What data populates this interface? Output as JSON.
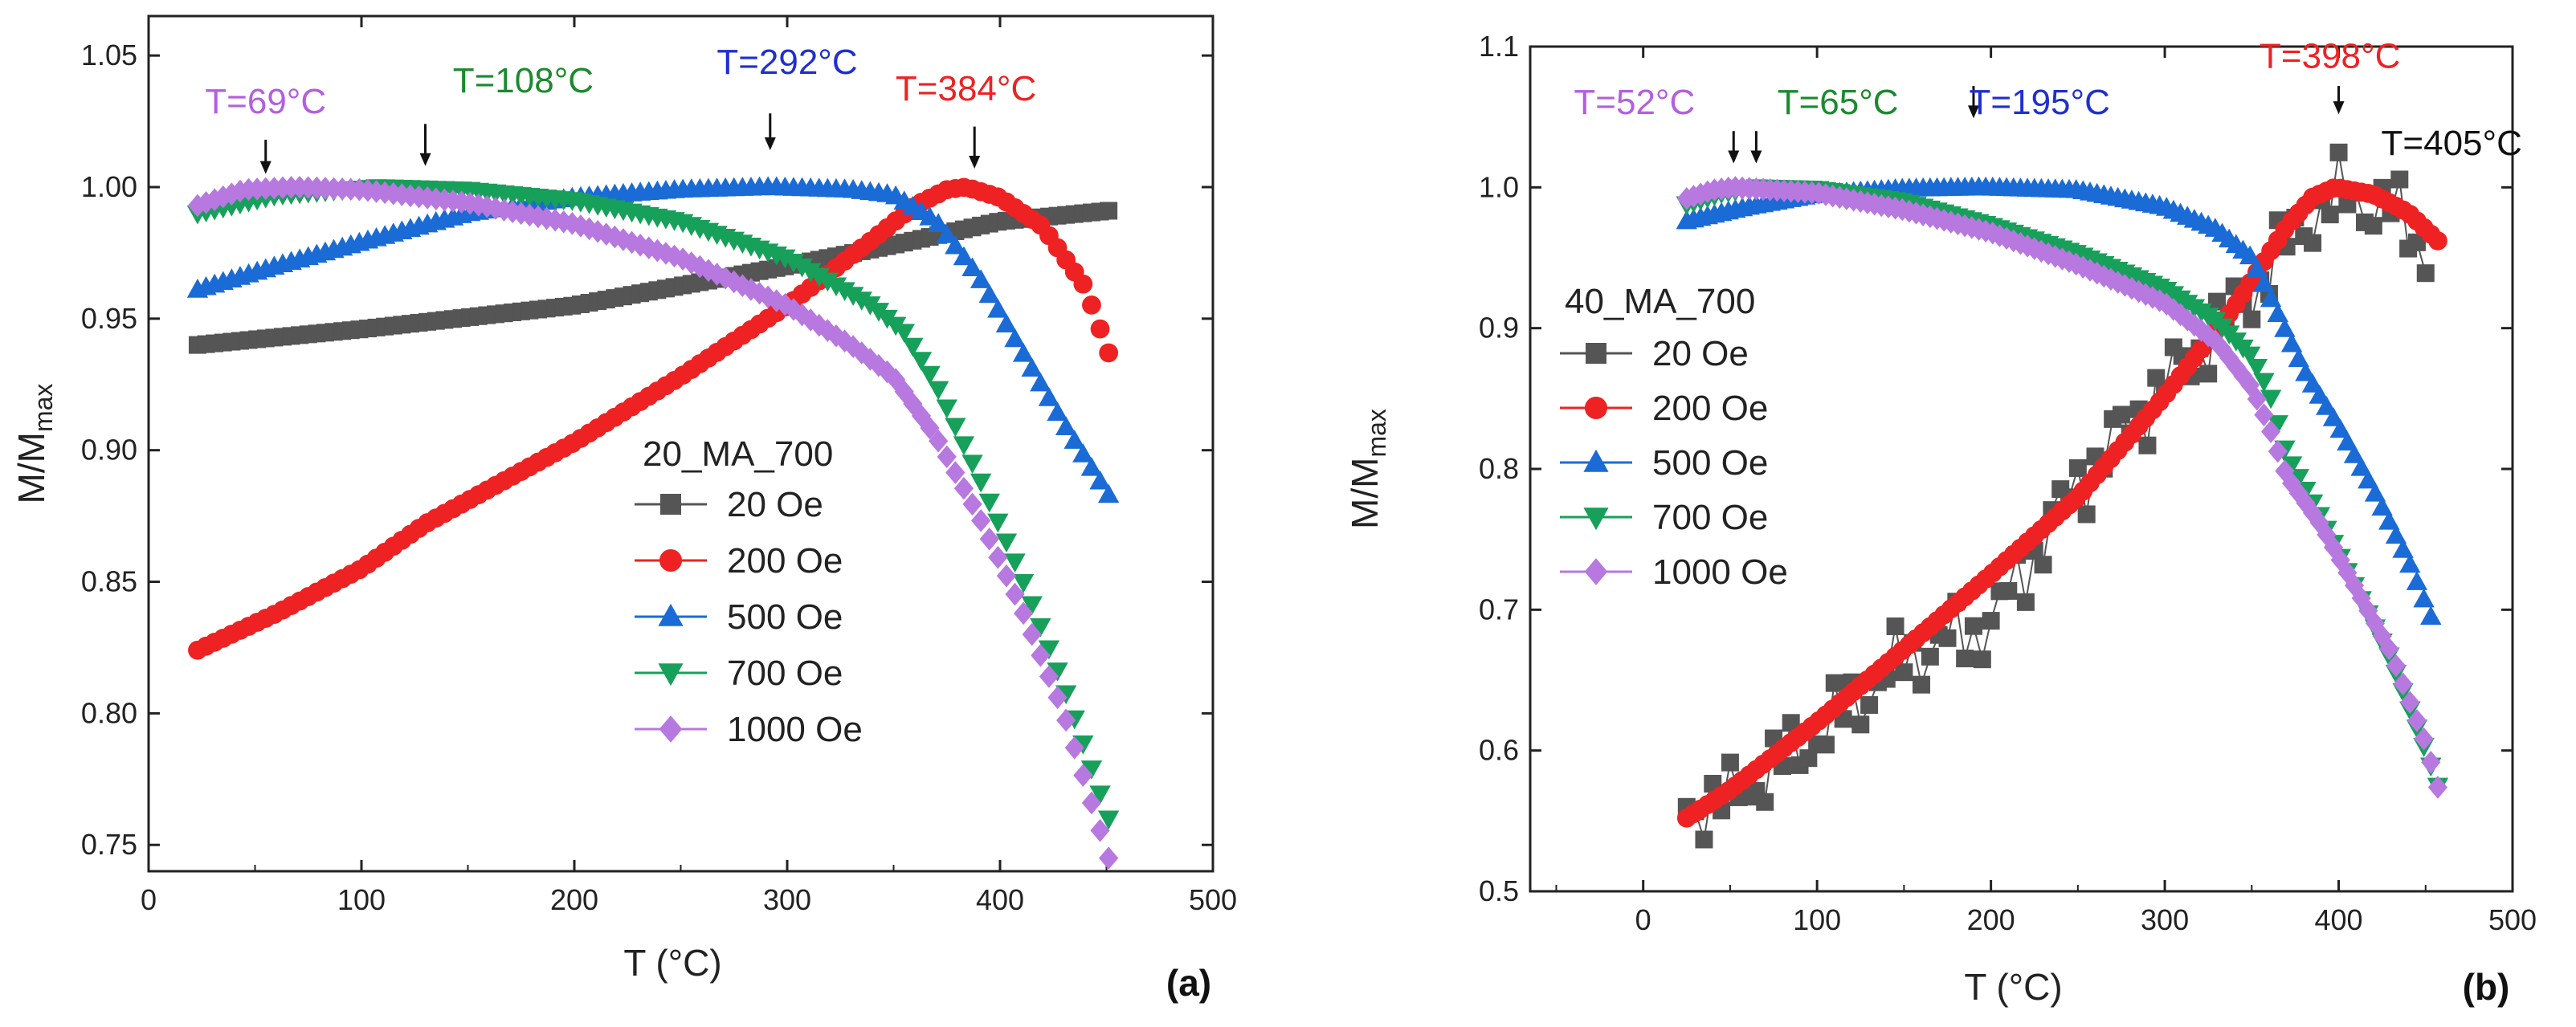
{
  "figure": {
    "panels": [
      "a",
      "b"
    ]
  },
  "chart_data": [
    {
      "panel": "(a)",
      "type": "scatter",
      "sample_label": "20_MA_700",
      "xlabel": "T (°C)",
      "ylabel": "M/M",
      "ylabel_sub": "max",
      "xlim": [
        0,
        500
      ],
      "ylim": [
        0.74,
        1.065
      ],
      "xticks": [
        0,
        100,
        200,
        300,
        400,
        500
      ],
      "yticks": [
        0.75,
        0.8,
        0.85,
        0.9,
        0.95,
        1.0,
        1.05
      ],
      "ytick_labels": [
        "0.75",
        "0.80",
        "0.85",
        "0.90",
        "0.95",
        "1.00",
        "1.05"
      ],
      "grid": false,
      "legend_position": "center-right",
      "series": [
        {
          "name": "20 Oe",
          "marker": "square",
          "color": "#555555",
          "x_start": 23,
          "x_end": 451,
          "step": 4,
          "curve": [
            [
              23,
              0.94
            ],
            [
              100,
              0.946
            ],
            [
              200,
              0.955
            ],
            [
              300,
              0.97
            ],
            [
              350,
              0.978
            ],
            [
              400,
              0.987
            ],
            [
              451,
              0.991
            ]
          ],
          "noise": 0
        },
        {
          "name": "200 Oe",
          "marker": "circle",
          "color": "#ee2222",
          "x_start": 23,
          "x_end": 451,
          "step": 4,
          "curve": [
            [
              23,
              0.824
            ],
            [
              60,
              0.838
            ],
            [
              100,
              0.855
            ],
            [
              130,
              0.872
            ],
            [
              200,
              0.903
            ],
            [
              250,
              0.928
            ],
            [
              300,
              0.955
            ],
            [
              340,
              0.98
            ],
            [
              360,
              0.993
            ],
            [
              375,
              0.999
            ],
            [
              384,
              1.0
            ],
            [
              400,
              0.996
            ],
            [
              420,
              0.985
            ],
            [
              440,
              0.962
            ],
            [
              451,
              0.937
            ]
          ],
          "noise": 0
        },
        {
          "name": "500 Oe",
          "marker": "triangle-up",
          "color": "#1a6bd6",
          "x_start": 23,
          "x_end": 451,
          "step": 4,
          "curve": [
            [
              23,
              0.961
            ],
            [
              60,
              0.97
            ],
            [
              100,
              0.979
            ],
            [
              150,
              0.99
            ],
            [
              200,
              0.996
            ],
            [
              250,
              0.999
            ],
            [
              292,
              1.0
            ],
            [
              330,
              0.999
            ],
            [
              350,
              0.997
            ],
            [
              370,
              0.987
            ],
            [
              390,
              0.966
            ],
            [
              410,
              0.938
            ],
            [
              430,
              0.91
            ],
            [
              451,
              0.883
            ]
          ],
          "noise": 0
        },
        {
          "name": "700 Oe",
          "marker": "triangle-down",
          "color": "#17a05a",
          "x_start": 23,
          "x_end": 451,
          "step": 4,
          "curve": [
            [
              23,
              0.99
            ],
            [
              60,
              0.997
            ],
            [
              108,
              1.0
            ],
            [
              150,
              0.999
            ],
            [
              200,
              0.995
            ],
            [
              250,
              0.987
            ],
            [
              300,
              0.973
            ],
            [
              340,
              0.955
            ],
            [
              355,
              0.945
            ],
            [
              370,
              0.925
            ],
            [
              390,
              0.89
            ],
            [
              410,
              0.852
            ],
            [
              430,
              0.81
            ],
            [
              451,
              0.76
            ]
          ],
          "noise": 0
        },
        {
          "name": "1000 Oe",
          "marker": "diamond",
          "color": "#b778e0",
          "x_start": 23,
          "x_end": 451,
          "step": 4,
          "curve": [
            [
              23,
              0.993
            ],
            [
              45,
              0.999
            ],
            [
              69,
              1.0
            ],
            [
              100,
              0.999
            ],
            [
              150,
              0.994
            ],
            [
              200,
              0.986
            ],
            [
              250,
              0.973
            ],
            [
              300,
              0.955
            ],
            [
              330,
              0.94
            ],
            [
              350,
              0.928
            ],
            [
              370,
              0.905
            ],
            [
              390,
              0.875
            ],
            [
              410,
              0.84
            ],
            [
              430,
              0.8
            ],
            [
              451,
              0.745
            ]
          ],
          "noise": 0
        }
      ],
      "annotations": [
        {
          "text": "T=69°C",
          "color": "#b35fe0",
          "arrow_x": 55,
          "arrow_from": 1.018,
          "arrow_to": 1.005,
          "tx": 55,
          "ty": 1.028
        },
        {
          "text": "T=108°C",
          "color": "#1b8a2e",
          "arrow_x": 130,
          "arrow_from": 1.024,
          "arrow_to": 1.008,
          "tx": 176,
          "ty": 1.036
        },
        {
          "text": "T=292°C",
          "color": "#1f2fd0",
          "arrow_x": 292,
          "arrow_from": 1.028,
          "arrow_to": 1.014,
          "tx": 300,
          "ty": 1.043
        },
        {
          "text": "T=384°C",
          "color": "#ee2222",
          "arrow_x": 388,
          "arrow_from": 1.023,
          "arrow_to": 1.007,
          "tx": 384,
          "ty": 1.033
        }
      ]
    },
    {
      "panel": "(b)",
      "type": "scatter",
      "sample_label": "40_MA_700",
      "xlabel": "T (°C)",
      "ylabel": "M/M",
      "ylabel_sub": "max",
      "xlim": [
        -65,
        500
      ],
      "ylim": [
        0.5,
        1.1
      ],
      "xticks": [
        0,
        100,
        200,
        300,
        400,
        500
      ],
      "yticks": [
        0.5,
        0.6,
        0.7,
        0.8,
        0.9,
        1.0,
        1.1
      ],
      "ytick_labels": [
        "0.5",
        "0.6",
        "0.7",
        "0.8",
        "0.9",
        "1.0",
        "1.1"
      ],
      "grid": false,
      "legend_position": "center-left",
      "series": [
        {
          "name": "20 Oe",
          "marker": "square",
          "color": "#555555",
          "x_start": 25,
          "x_end": 453,
          "step": 5,
          "curve": [
            [
              25,
              0.56
            ],
            [
              50,
              0.565
            ],
            [
              100,
              0.61
            ],
            [
              150,
              0.665
            ],
            [
              200,
              0.69
            ],
            [
              250,
              0.79
            ],
            [
              300,
              0.86
            ],
            [
              350,
              0.925
            ],
            [
              380,
              0.975
            ],
            [
              400,
              0.995
            ],
            [
              430,
              0.985
            ],
            [
              453,
              0.95
            ]
          ],
          "noise": 0.05
        },
        {
          "name": "200 Oe",
          "marker": "circle",
          "color": "#ee2222",
          "x_start": 25,
          "x_end": 457,
          "step": 4,
          "curve": [
            [
              25,
              0.552
            ],
            [
              50,
              0.572
            ],
            [
              100,
              0.62
            ],
            [
              150,
              0.672
            ],
            [
              200,
              0.725
            ],
            [
              250,
              0.78
            ],
            [
              300,
              0.852
            ],
            [
              340,
              0.915
            ],
            [
              370,
              0.972
            ],
            [
              385,
              0.993
            ],
            [
              398,
              1.0
            ],
            [
              420,
              0.995
            ],
            [
              440,
              0.982
            ],
            [
              457,
              0.962
            ]
          ],
          "noise": 0
        },
        {
          "name": "500 Oe",
          "marker": "triangle-up",
          "color": "#1a6bd6",
          "x_start": 25,
          "x_end": 453,
          "step": 4,
          "curve": [
            [
              25,
              0.976
            ],
            [
              60,
              0.986
            ],
            [
              100,
              0.995
            ],
            [
              150,
              0.999
            ],
            [
              195,
              1.0
            ],
            [
              250,
              0.998
            ],
            [
              300,
              0.986
            ],
            [
              330,
              0.97
            ],
            [
              350,
              0.95
            ],
            [
              365,
              0.91
            ],
            [
              380,
              0.87
            ],
            [
              400,
              0.83
            ],
            [
              420,
              0.785
            ],
            [
              440,
              0.735
            ],
            [
              453,
              0.695
            ]
          ],
          "noise": 0
        },
        {
          "name": "700 Oe",
          "marker": "triangle-down",
          "color": "#17a05a",
          "x_start": 25,
          "x_end": 457,
          "step": 4,
          "curve": [
            [
              25,
              0.988
            ],
            [
              45,
              0.996
            ],
            [
              65,
              1.0
            ],
            [
              100,
              0.999
            ],
            [
              150,
              0.99
            ],
            [
              200,
              0.973
            ],
            [
              250,
              0.953
            ],
            [
              300,
              0.928
            ],
            [
              330,
              0.905
            ],
            [
              350,
              0.88
            ],
            [
              360,
              0.855
            ],
            [
              370,
              0.81
            ],
            [
              390,
              0.765
            ],
            [
              410,
              0.715
            ],
            [
              430,
              0.665
            ],
            [
              450,
              0.6
            ],
            [
              457,
              0.575
            ]
          ],
          "noise": 0
        },
        {
          "name": "1000 Oe",
          "marker": "diamond",
          "color": "#b778e0",
          "x_start": 25,
          "x_end": 459,
          "step": 4,
          "curve": [
            [
              25,
              0.992
            ],
            [
              40,
              0.998
            ],
            [
              52,
              1.0
            ],
            [
              100,
              0.996
            ],
            [
              150,
              0.984
            ],
            [
              200,
              0.968
            ],
            [
              250,
              0.945
            ],
            [
              300,
              0.918
            ],
            [
              330,
              0.89
            ],
            [
              350,
              0.858
            ],
            [
              360,
              0.83
            ],
            [
              370,
              0.795
            ],
            [
              390,
              0.76
            ],
            [
              410,
              0.715
            ],
            [
              430,
              0.67
            ],
            [
              450,
              0.605
            ],
            [
              459,
              0.565
            ]
          ],
          "noise": 0
        }
      ],
      "annotations": [
        {
          "text": "T=52°C",
          "color": "#b35fe0",
          "arrow_x": 52,
          "arrow_from": 1.04,
          "arrow_to": 1.017,
          "tx": -5,
          "ty": 1.052
        },
        {
          "text": "T=65°C",
          "color": "#1b8a2e",
          "arrow_x": 65,
          "arrow_from": 1.04,
          "arrow_to": 1.017,
          "tx": 112,
          "ty": 1.052
        },
        {
          "text": "T=195°C",
          "color": "#1f2fd0",
          "arrow_x": 190,
          "arrow_from": 1.072,
          "arrow_to": 1.049,
          "tx": 228,
          "ty": 1.052
        },
        {
          "text": "T=398°C",
          "color": "#ee2222",
          "arrow_x": 400,
          "arrow_from": 1.072,
          "arrow_to": 1.052,
          "tx": 395,
          "ty": 1.085
        },
        {
          "text": "T=405°C",
          "color": "#111111",
          "arrow_x": 0,
          "arrow_from": 0,
          "arrow_to": 0,
          "tx": 465,
          "ty": 1.023
        }
      ]
    }
  ]
}
